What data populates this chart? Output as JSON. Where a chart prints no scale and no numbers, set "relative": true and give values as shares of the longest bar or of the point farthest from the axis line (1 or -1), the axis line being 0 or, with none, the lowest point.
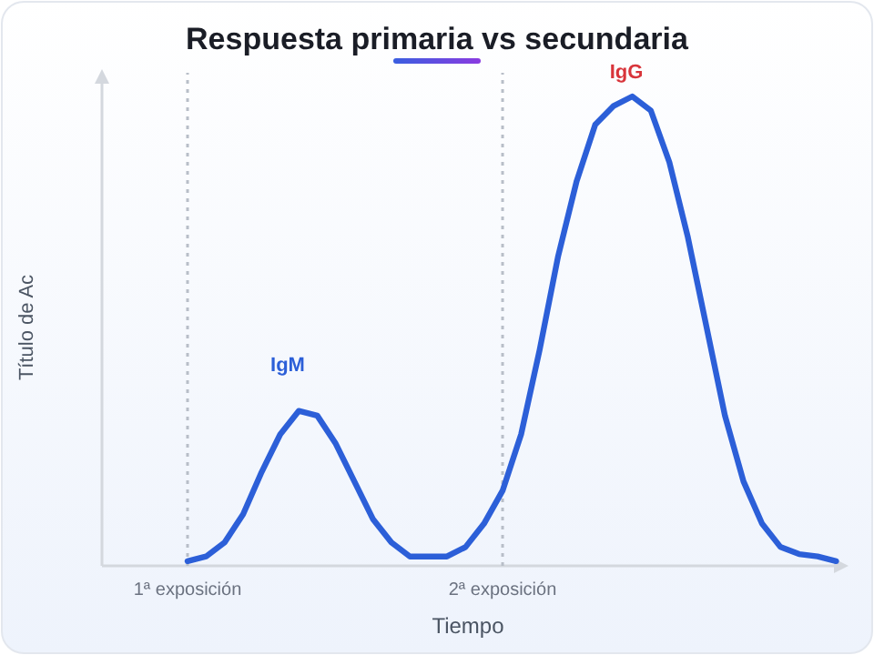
{
  "chart_data": {
    "type": "line",
    "title": "Respuesta primaria vs secundaria",
    "xlabel": "Tiempo",
    "ylabel": "Título de Ac",
    "relative": true,
    "categories": [
      "1ª exposición",
      null,
      null,
      null,
      null,
      null,
      null,
      null,
      null,
      null,
      null,
      null,
      null,
      null,
      null,
      null,
      null,
      "2ª exposición",
      null,
      null,
      null,
      null,
      null,
      null,
      null,
      null,
      null,
      null,
      null,
      null,
      null,
      null,
      null,
      null,
      null,
      null
    ],
    "series": [
      {
        "color": "#2c5fd8",
        "values": [
          0.01,
          0.02,
          0.05,
          0.11,
          0.2,
          0.28,
          0.33,
          0.32,
          0.26,
          0.18,
          0.1,
          0.05,
          0.02,
          0.02,
          0.02,
          0.04,
          0.09,
          0.16,
          0.28,
          0.46,
          0.66,
          0.82,
          0.94,
          0.98,
          1,
          0.97,
          0.86,
          0.7,
          0.51,
          0.32,
          0.18,
          0.09,
          0.04,
          0.025,
          0.02,
          0.01
        ]
      }
    ],
    "ref_lines": [
      {
        "axis": "x",
        "value": "1ª exposición",
        "color": "#b8bec8",
        "line_style": "dotted"
      },
      {
        "axis": "x",
        "value": "2ª exposición",
        "color": "#b8bec8",
        "line_style": "dotted"
      }
    ],
    "annotations": [
      "IgM",
      "IgG"
    ]
  }
}
